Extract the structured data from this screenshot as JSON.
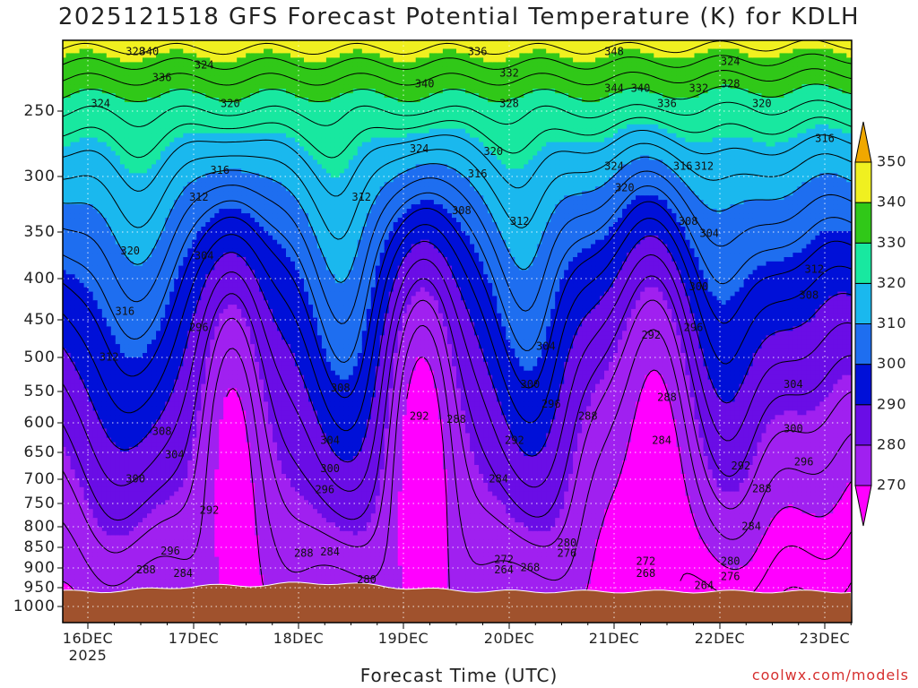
{
  "title": "2025121518 GFS Forecast Potential Temperature (K) for KDLH",
  "xlabel": "Forecast Time (UTC)",
  "credit": "coolwx.com/models",
  "chart_data": {
    "type": "heatmap",
    "title": "2025121518 GFS Forecast Potential Temperature (K) for KDLH",
    "xlabel": "Forecast Time (UTC)",
    "ylabel": "",
    "y_ticks": [
      250,
      300,
      350,
      400,
      450,
      500,
      550,
      600,
      650,
      700,
      750,
      800,
      850,
      900,
      950,
      1000
    ],
    "y_scale": "log-pressure (inverted)",
    "ylim": [
      1000,
      200
    ],
    "x_ticks": [
      "16DEC\n2025",
      "17DEC",
      "18DEC",
      "19DEC",
      "20DEC",
      "21DEC",
      "22DEC",
      "23DEC"
    ],
    "x_tick_labels": [
      {
        "line1": "16DEC",
        "line2": "2025"
      },
      {
        "line1": "17DEC",
        "line2": ""
      },
      {
        "line1": "18DEC",
        "line2": ""
      },
      {
        "line1": "19DEC",
        "line2": ""
      },
      {
        "line1": "20DEC",
        "line2": ""
      },
      {
        "line1": "21DEC",
        "line2": ""
      },
      {
        "line1": "22DEC",
        "line2": ""
      },
      {
        "line1": "23DEC",
        "line2": ""
      }
    ],
    "color_scale": {
      "levels": [
        270,
        280,
        290,
        300,
        310,
        320,
        330,
        340,
        350
      ],
      "colors": [
        "#ff00ff",
        "#a020f0",
        "#6a0de6",
        "#0010d8",
        "#1e6ef0",
        "#1ab8ee",
        "#18e8a0",
        "#30c818",
        "#f0f020",
        "#f0a800"
      ],
      "under_color": "#ff00ff",
      "over_color": "#f0a800"
    },
    "ground_color": "#a0522d",
    "contour_interval": 4,
    "contour_labels": [
      {
        "value": 324,
        "t": 0.12,
        "p": 245
      },
      {
        "value": 328,
        "t": 0.45,
        "p": 212
      },
      {
        "value": 340,
        "t": 0.58,
        "p": 212
      },
      {
        "value": 336,
        "t": 0.7,
        "p": 228
      },
      {
        "value": 324,
        "t": 1.1,
        "p": 220
      },
      {
        "value": 320,
        "t": 1.35,
        "p": 245
      },
      {
        "value": 316,
        "t": 1.25,
        "p": 295
      },
      {
        "value": 312,
        "t": 1.05,
        "p": 318
      },
      {
        "value": 320,
        "t": 0.4,
        "p": 370
      },
      {
        "value": 316,
        "t": 0.35,
        "p": 440
      },
      {
        "value": 312,
        "t": 0.2,
        "p": 500
      },
      {
        "value": 304,
        "t": 1.1,
        "p": 375
      },
      {
        "value": 296,
        "t": 1.05,
        "p": 460
      },
      {
        "value": 308,
        "t": 0.7,
        "p": 615
      },
      {
        "value": 304,
        "t": 0.82,
        "p": 655
      },
      {
        "value": 300,
        "t": 0.45,
        "p": 700
      },
      {
        "value": 292,
        "t": 1.15,
        "p": 765
      },
      {
        "value": 296,
        "t": 0.78,
        "p": 860
      },
      {
        "value": 288,
        "t": 0.55,
        "p": 905
      },
      {
        "value": 284,
        "t": 0.9,
        "p": 915
      },
      {
        "value": 308,
        "t": 2.4,
        "p": 545
      },
      {
        "value": 304,
        "t": 2.3,
        "p": 630
      },
      {
        "value": 300,
        "t": 2.3,
        "p": 680
      },
      {
        "value": 296,
        "t": 2.25,
        "p": 722
      },
      {
        "value": 288,
        "t": 2.05,
        "p": 865
      },
      {
        "value": 284,
        "t": 2.3,
        "p": 862
      },
      {
        "value": 280,
        "t": 2.65,
        "p": 930
      },
      {
        "value": 312,
        "t": 2.6,
        "p": 318
      },
      {
        "value": 340,
        "t": 3.2,
        "p": 232
      },
      {
        "value": 336,
        "t": 3.7,
        "p": 212
      },
      {
        "value": 332,
        "t": 4.0,
        "p": 225
      },
      {
        "value": 328,
        "t": 4.0,
        "p": 245
      },
      {
        "value": 324,
        "t": 3.15,
        "p": 278
      },
      {
        "value": 320,
        "t": 3.85,
        "p": 280
      },
      {
        "value": 316,
        "t": 3.7,
        "p": 298
      },
      {
        "value": 308,
        "t": 3.55,
        "p": 330
      },
      {
        "value": 312,
        "t": 4.1,
        "p": 340
      },
      {
        "value": 292,
        "t": 3.15,
        "p": 590
      },
      {
        "value": 288,
        "t": 3.5,
        "p": 595
      },
      {
        "value": 304,
        "t": 4.35,
        "p": 485
      },
      {
        "value": 300,
        "t": 4.2,
        "p": 540
      },
      {
        "value": 296,
        "t": 4.4,
        "p": 570
      },
      {
        "value": 292,
        "t": 4.05,
        "p": 630
      },
      {
        "value": 288,
        "t": 4.75,
        "p": 590
      },
      {
        "value": 284,
        "t": 3.9,
        "p": 700
      },
      {
        "value": 280,
        "t": 4.55,
        "p": 840
      },
      {
        "value": 276,
        "t": 4.55,
        "p": 865
      },
      {
        "value": 272,
        "t": 3.95,
        "p": 880
      },
      {
        "value": 268,
        "t": 4.2,
        "p": 900
      },
      {
        "value": 264,
        "t": 3.95,
        "p": 905
      },
      {
        "value": 348,
        "t": 5.0,
        "p": 212
      },
      {
        "value": 344,
        "t": 5.0,
        "p": 235
      },
      {
        "value": 340,
        "t": 5.25,
        "p": 235
      },
      {
        "value": 336,
        "t": 5.5,
        "p": 245
      },
      {
        "value": 332,
        "t": 5.8,
        "p": 235
      },
      {
        "value": 328,
        "t": 6.1,
        "p": 232
      },
      {
        "value": 324,
        "t": 6.1,
        "p": 218
      },
      {
        "value": 320,
        "t": 6.4,
        "p": 245
      },
      {
        "value": 324,
        "t": 5.0,
        "p": 292
      },
      {
        "value": 320,
        "t": 5.1,
        "p": 310
      },
      {
        "value": 316,
        "t": 5.65,
        "p": 292
      },
      {
        "value": 312,
        "t": 5.85,
        "p": 292
      },
      {
        "value": 308,
        "t": 5.7,
        "p": 340
      },
      {
        "value": 304,
        "t": 5.9,
        "p": 352
      },
      {
        "value": 316,
        "t": 7.0,
        "p": 270
      },
      {
        "value": 312,
        "t": 6.9,
        "p": 390
      },
      {
        "value": 308,
        "t": 6.85,
        "p": 420
      },
      {
        "value": 300,
        "t": 5.8,
        "p": 410
      },
      {
        "value": 296,
        "t": 5.75,
        "p": 460
      },
      {
        "value": 292,
        "t": 5.35,
        "p": 470
      },
      {
        "value": 288,
        "t": 5.5,
        "p": 560
      },
      {
        "value": 284,
        "t": 5.45,
        "p": 630
      },
      {
        "value": 304,
        "t": 6.7,
        "p": 540
      },
      {
        "value": 300,
        "t": 6.7,
        "p": 610
      },
      {
        "value": 296,
        "t": 6.8,
        "p": 668
      },
      {
        "value": 292,
        "t": 6.2,
        "p": 675
      },
      {
        "value": 288,
        "t": 6.4,
        "p": 720
      },
      {
        "value": 284,
        "t": 6.3,
        "p": 800
      },
      {
        "value": 280,
        "t": 6.1,
        "p": 885
      },
      {
        "value": 276,
        "t": 6.1,
        "p": 922
      },
      {
        "value": 272,
        "t": 5.3,
        "p": 885
      },
      {
        "value": 268,
        "t": 5.3,
        "p": 915
      },
      {
        "value": 264,
        "t": 5.85,
        "p": 945
      }
    ]
  }
}
